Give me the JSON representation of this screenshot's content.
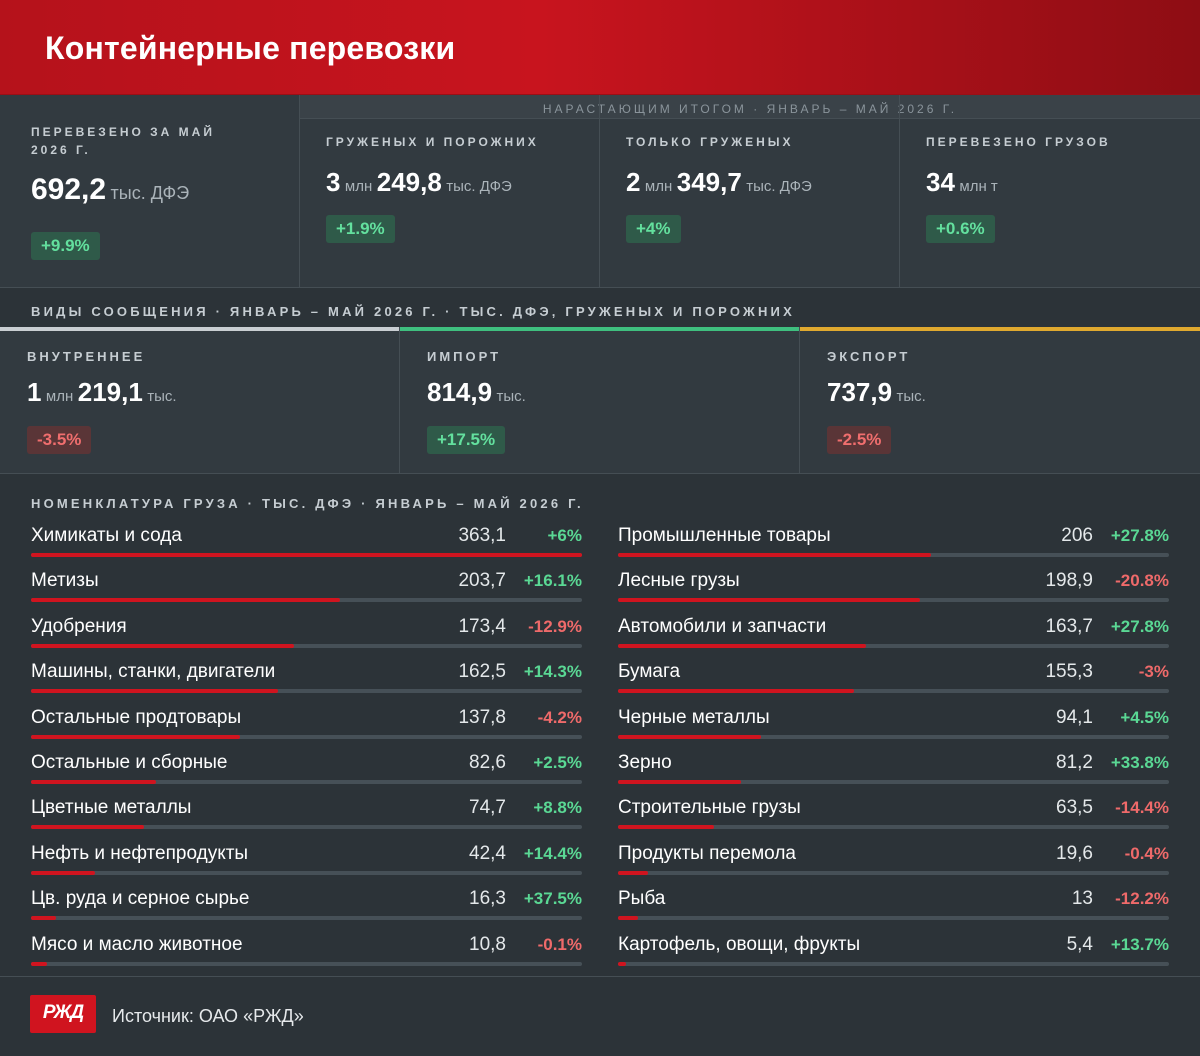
{
  "header": {
    "title": "Контейнерные перевозки"
  },
  "cumulative_banner": "Нарастающим итогом · январь – май 2026 г.",
  "stats": {
    "may": {
      "label": "Перевезено за май 2026 г.",
      "value": "692,2",
      "unit": "тыс. ДФЭ",
      "change": "+9.9%"
    },
    "loaded_empty": {
      "label": "Груженых и порожних",
      "value_a": "3",
      "unit_a": "млн",
      "value_b": "249,8",
      "unit_b": "тыс. ДФЭ",
      "change": "+1.9%"
    },
    "loaded_only": {
      "label": "Только груженых",
      "value_a": "2",
      "unit_a": "млн",
      "value_b": "349,7",
      "unit_b": "тыс. ДФЭ",
      "change": "+4%"
    },
    "cargo_total": {
      "label": "Перевезено грузов",
      "value": "34",
      "unit": "млн т",
      "change": "+0.6%"
    }
  },
  "modes_title": "Виды сообщения · январь – май 2026 г. · тыс. ДФЭ, груженых и порожних",
  "modes": [
    {
      "label": "ВНУТРЕННЕЕ",
      "value_a": "1",
      "unit_a": "млн",
      "value_b": "219,1",
      "unit_b": "тыс.",
      "change": "-3.5%",
      "sign": "neg",
      "color": "#c9ced2"
    },
    {
      "label": "ИМПОРТ",
      "value_a": "",
      "unit_a": "",
      "value_b": "814,9",
      "unit_b": "тыс.",
      "change": "+17.5%",
      "sign": "pos",
      "color": "#3fbf7f"
    },
    {
      "label": "ЭКСПОРТ",
      "value_a": "",
      "unit_a": "",
      "value_b": "737,9",
      "unit_b": "тыс.",
      "change": "-2.5%",
      "sign": "neg",
      "color": "#e0a92f"
    }
  ],
  "nomenclature_title": "Номенклатура груза · тыс. ДФЭ · январь – май 2026 г.",
  "cargo_left": [
    {
      "name": "Химикаты и сода",
      "value": "363,1",
      "num": 363.1,
      "change": "+6%",
      "sign": "pos"
    },
    {
      "name": "Метизы",
      "value": "203,7",
      "num": 203.7,
      "change": "+16.1%",
      "sign": "pos"
    },
    {
      "name": "Удобрения",
      "value": "173,4",
      "num": 173.4,
      "change": "-12.9%",
      "sign": "neg"
    },
    {
      "name": "Машины, станки, двигатели",
      "value": "162,5",
      "num": 162.5,
      "change": "+14.3%",
      "sign": "pos"
    },
    {
      "name": "Остальные продтовары",
      "value": "137,8",
      "num": 137.8,
      "change": "-4.2%",
      "sign": "neg"
    },
    {
      "name": "Остальные и сборные",
      "value": "82,6",
      "num": 82.6,
      "change": "+2.5%",
      "sign": "pos"
    },
    {
      "name": "Цветные металлы",
      "value": "74,7",
      "num": 74.7,
      "change": "+8.8%",
      "sign": "pos"
    },
    {
      "name": "Нефть и нефтепродукты",
      "value": "42,4",
      "num": 42.4,
      "change": "+14.4%",
      "sign": "pos"
    },
    {
      "name": "Цв. руда и серное сырье",
      "value": "16,3",
      "num": 16.3,
      "change": "+37.5%",
      "sign": "pos"
    },
    {
      "name": "Мясо и масло животное",
      "value": "10,8",
      "num": 10.8,
      "change": "-0.1%",
      "sign": "neg"
    }
  ],
  "cargo_right": [
    {
      "name": "Промышленные товары",
      "value": "206",
      "num": 206,
      "change": "+27.8%",
      "sign": "pos"
    },
    {
      "name": "Лесные грузы",
      "value": "198,9",
      "num": 198.9,
      "change": "-20.8%",
      "sign": "neg"
    },
    {
      "name": "Автомобили и запчасти",
      "value": "163,7",
      "num": 163.7,
      "change": "+27.8%",
      "sign": "pos"
    },
    {
      "name": "Бумага",
      "value": "155,3",
      "num": 155.3,
      "change": "-3%",
      "sign": "neg"
    },
    {
      "name": "Черные металлы",
      "value": "94,1",
      "num": 94.1,
      "change": "+4.5%",
      "sign": "pos"
    },
    {
      "name": "Зерно",
      "value": "81,2",
      "num": 81.2,
      "change": "+33.8%",
      "sign": "pos"
    },
    {
      "name": "Строительные грузы",
      "value": "63,5",
      "num": 63.5,
      "change": "-14.4%",
      "sign": "neg"
    },
    {
      "name": "Продукты перемола",
      "value": "19,6",
      "num": 19.6,
      "change": "-0.4%",
      "sign": "neg"
    },
    {
      "name": "Рыба",
      "value": "13",
      "num": 13,
      "change": "-12.2%",
      "sign": "neg"
    },
    {
      "name": "Картофель, овощи, фрукты",
      "value": "5,4",
      "num": 5.4,
      "change": "+13.7%",
      "sign": "pos"
    }
  ],
  "footer": {
    "logo_text": "РЖД",
    "source": "Источник: ОАО «РЖД»"
  },
  "colors": {
    "brand_red": "#d0141f",
    "positive": "#5ad894",
    "negative": "#ef6a6a"
  }
}
